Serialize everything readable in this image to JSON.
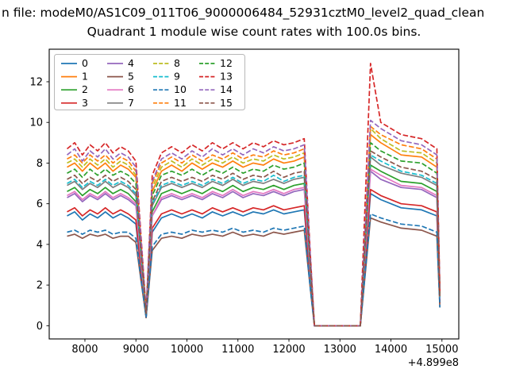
{
  "figure": {
    "suptitle": "n file: modeM0/AS1C09_011T06_9000006484_52931cztM0_level2_quad_clean",
    "title": "Quadrant 1 module wise count rates with 100.0s bins."
  },
  "chart_data": {
    "type": "line",
    "title": "Quadrant 1 module wise count rates with 100.0s bins.",
    "xlabel": "",
    "ylabel": "",
    "x_offset_label": "+4.899e8",
    "grid": false,
    "legend_position": "upper left",
    "legend_ncol": 4,
    "xlim": [
      7300,
      15330
    ],
    "ylim": [
      -0.65,
      13.6
    ],
    "xticks": [
      8000,
      9000,
      10000,
      11000,
      12000,
      13000,
      14000,
      15000
    ],
    "yticks": [
      0,
      2,
      4,
      6,
      8,
      10,
      12
    ],
    "x": [
      7650,
      7800,
      7950,
      8100,
      8250,
      8400,
      8550,
      8700,
      8850,
      9000,
      9100,
      9200,
      9320,
      9500,
      9700,
      9900,
      10100,
      10300,
      10500,
      10700,
      10900,
      11100,
      11300,
      11500,
      11700,
      11900,
      12100,
      12300,
      12420,
      12500,
      13000,
      13400,
      13600,
      13800,
      14200,
      14600,
      14900,
      14960
    ],
    "series": [
      {
        "name": "0",
        "color": "#1f77b4",
        "dashed": false,
        "values": [
          5.4,
          5.6,
          5.2,
          5.5,
          5.3,
          5.6,
          5.3,
          5.5,
          5.3,
          5.0,
          2.7,
          0.4,
          4.6,
          5.3,
          5.5,
          5.3,
          5.5,
          5.3,
          5.6,
          5.4,
          5.6,
          5.4,
          5.6,
          5.5,
          5.7,
          5.5,
          5.6,
          5.7,
          2.2,
          0,
          0,
          0,
          6.5,
          6.2,
          5.8,
          5.7,
          5.4,
          1.1
        ]
      },
      {
        "name": "1",
        "color": "#ff7f0e",
        "dashed": false,
        "values": [
          7.8,
          8.0,
          7.6,
          8.0,
          7.7,
          8.0,
          7.6,
          7.9,
          7.7,
          7.3,
          3.9,
          0.6,
          6.6,
          7.6,
          7.9,
          7.6,
          8.0,
          7.7,
          8.0,
          7.8,
          8.1,
          7.8,
          8.0,
          7.9,
          8.2,
          8.0,
          8.1,
          8.3,
          3.1,
          0,
          0,
          0,
          9.4,
          9.0,
          8.4,
          8.3,
          7.8,
          1.6
        ]
      },
      {
        "name": "2",
        "color": "#2ca02c",
        "dashed": false,
        "values": [
          6.6,
          6.8,
          6.4,
          6.7,
          6.5,
          6.8,
          6.5,
          6.7,
          6.5,
          6.1,
          3.3,
          0.5,
          5.6,
          6.5,
          6.7,
          6.5,
          6.7,
          6.5,
          6.8,
          6.6,
          6.9,
          6.6,
          6.8,
          6.7,
          6.9,
          6.7,
          6.9,
          7.0,
          2.6,
          0,
          0,
          0,
          7.9,
          7.6,
          7.1,
          7.0,
          6.6,
          1.3
        ]
      },
      {
        "name": "3",
        "color": "#d62728",
        "dashed": false,
        "values": [
          5.6,
          5.8,
          5.4,
          5.7,
          5.5,
          5.8,
          5.5,
          5.7,
          5.5,
          5.2,
          2.8,
          0.4,
          4.8,
          5.5,
          5.7,
          5.5,
          5.7,
          5.5,
          5.8,
          5.6,
          5.8,
          5.6,
          5.8,
          5.7,
          5.9,
          5.7,
          5.8,
          5.9,
          2.2,
          0,
          0,
          0,
          6.7,
          6.4,
          6.0,
          5.9,
          5.6,
          1.1
        ]
      },
      {
        "name": "4",
        "color": "#9467bd",
        "dashed": false,
        "values": [
          6.3,
          6.5,
          6.1,
          6.4,
          6.2,
          6.5,
          6.2,
          6.4,
          6.2,
          5.9,
          3.2,
          0.5,
          5.4,
          6.2,
          6.4,
          6.2,
          6.4,
          6.2,
          6.5,
          6.3,
          6.6,
          6.3,
          6.5,
          6.4,
          6.6,
          6.4,
          6.6,
          6.7,
          2.5,
          0,
          0,
          0,
          7.6,
          7.2,
          6.8,
          6.7,
          6.3,
          1.3
        ]
      },
      {
        "name": "5",
        "color": "#8c564b",
        "dashed": false,
        "values": [
          4.4,
          4.5,
          4.3,
          4.5,
          4.4,
          4.5,
          4.3,
          4.4,
          4.4,
          4.1,
          2.2,
          0.4,
          3.7,
          4.3,
          4.4,
          4.3,
          4.5,
          4.4,
          4.5,
          4.4,
          4.6,
          4.4,
          4.5,
          4.4,
          4.6,
          4.5,
          4.6,
          4.7,
          1.8,
          0,
          0,
          0,
          5.3,
          5.1,
          4.8,
          4.7,
          4.4,
          0.9
        ]
      },
      {
        "name": "6",
        "color": "#e377c2",
        "dashed": false,
        "values": [
          6.4,
          6.6,
          6.2,
          6.5,
          6.3,
          6.6,
          6.3,
          6.5,
          6.3,
          6.0,
          3.2,
          0.5,
          5.4,
          6.3,
          6.5,
          6.3,
          6.5,
          6.3,
          6.6,
          6.4,
          6.7,
          6.4,
          6.6,
          6.5,
          6.7,
          6.5,
          6.7,
          6.8,
          2.6,
          0,
          0,
          0,
          7.7,
          7.4,
          6.9,
          6.8,
          6.4,
          1.3
        ]
      },
      {
        "name": "7",
        "color": "#7f7f7f",
        "dashed": false,
        "values": [
          6.9,
          7.1,
          6.7,
          7.0,
          6.8,
          7.1,
          6.8,
          7.0,
          6.8,
          6.4,
          3.5,
          0.6,
          5.9,
          6.8,
          7.0,
          6.8,
          7.0,
          6.8,
          7.1,
          6.9,
          7.2,
          6.9,
          7.1,
          7.0,
          7.2,
          7.0,
          7.2,
          7.3,
          2.8,
          0,
          0,
          0,
          8.3,
          7.9,
          7.5,
          7.3,
          6.9,
          1.4
        ]
      },
      {
        "name": "8",
        "color": "#bcbd22",
        "dashed": true,
        "values": [
          8.0,
          8.2,
          7.8,
          8.2,
          7.9,
          8.2,
          7.8,
          8.1,
          7.9,
          7.4,
          4.0,
          0.6,
          6.8,
          7.8,
          8.1,
          7.8,
          8.2,
          7.9,
          8.2,
          8.0,
          8.3,
          8.0,
          8.2,
          8.1,
          8.4,
          8.2,
          8.3,
          8.5,
          3.2,
          0,
          0,
          0,
          9.7,
          9.2,
          8.6,
          8.5,
          8.0,
          1.6
        ]
      },
      {
        "name": "9",
        "color": "#17becf",
        "dashed": true,
        "values": [
          7.0,
          7.2,
          6.8,
          7.1,
          6.9,
          7.2,
          6.9,
          7.1,
          6.9,
          6.5,
          3.5,
          0.6,
          6.0,
          6.9,
          7.1,
          6.9,
          7.1,
          6.9,
          7.2,
          7.0,
          7.3,
          7.0,
          7.2,
          7.1,
          7.4,
          7.1,
          7.3,
          7.4,
          2.8,
          0,
          0,
          0,
          8.4,
          8.1,
          7.6,
          7.4,
          7.0,
          1.4
        ]
      },
      {
        "name": "10",
        "color": "#1f77b4",
        "dashed": true,
        "values": [
          4.6,
          4.7,
          4.5,
          4.7,
          4.6,
          4.7,
          4.5,
          4.6,
          4.6,
          4.3,
          2.3,
          0.4,
          3.9,
          4.5,
          4.6,
          4.5,
          4.7,
          4.6,
          4.7,
          4.6,
          4.8,
          4.6,
          4.7,
          4.6,
          4.8,
          4.7,
          4.8,
          4.9,
          1.8,
          0,
          0,
          0,
          5.5,
          5.3,
          5.0,
          4.9,
          4.6,
          0.9
        ]
      },
      {
        "name": "11",
        "color": "#ff7f0e",
        "dashed": true,
        "values": [
          8.2,
          8.4,
          8.0,
          8.4,
          8.1,
          8.4,
          8.0,
          8.3,
          8.1,
          7.6,
          4.1,
          0.7,
          7.0,
          8.0,
          8.3,
          8.0,
          8.4,
          8.1,
          8.4,
          8.2,
          8.5,
          8.2,
          8.4,
          8.3,
          8.6,
          8.4,
          8.5,
          8.7,
          3.3,
          0,
          0,
          0,
          9.8,
          9.4,
          8.9,
          8.7,
          8.2,
          1.6
        ]
      },
      {
        "name": "12",
        "color": "#2ca02c",
        "dashed": true,
        "values": [
          7.5,
          7.7,
          7.3,
          7.7,
          7.4,
          7.7,
          7.4,
          7.6,
          7.4,
          7.0,
          3.8,
          0.6,
          6.4,
          7.4,
          7.6,
          7.4,
          7.7,
          7.4,
          7.7,
          7.5,
          7.8,
          7.5,
          7.7,
          7.6,
          7.9,
          7.7,
          7.8,
          8.0,
          3.0,
          0,
          0,
          0,
          9.0,
          8.6,
          8.1,
          8.0,
          7.5,
          1.5
        ]
      },
      {
        "name": "13",
        "color": "#d62728",
        "dashed": true,
        "values": [
          8.7,
          9.0,
          8.4,
          8.9,
          8.6,
          9.0,
          8.5,
          8.8,
          8.6,
          8.1,
          4.4,
          0.7,
          7.4,
          8.5,
          8.8,
          8.5,
          8.9,
          8.6,
          9.0,
          8.7,
          9.0,
          8.7,
          9.0,
          8.8,
          9.1,
          8.9,
          9.0,
          9.2,
          3.5,
          0,
          0,
          0,
          12.9,
          10.0,
          9.4,
          9.2,
          8.7,
          1.7
        ]
      },
      {
        "name": "14",
        "color": "#9467bd",
        "dashed": true,
        "values": [
          8.4,
          8.7,
          8.1,
          8.6,
          8.3,
          8.7,
          8.2,
          8.5,
          8.3,
          7.8,
          4.2,
          0.7,
          7.1,
          8.2,
          8.5,
          8.2,
          8.6,
          8.3,
          8.7,
          8.4,
          8.7,
          8.4,
          8.7,
          8.5,
          8.8,
          8.6,
          8.7,
          8.9,
          3.4,
          0,
          0,
          0,
          10.1,
          9.7,
          9.1,
          8.9,
          8.4,
          1.7
        ]
      },
      {
        "name": "15",
        "color": "#8c564b",
        "dashed": true,
        "values": [
          7.2,
          7.4,
          7.0,
          7.3,
          7.1,
          7.4,
          7.1,
          7.3,
          7.1,
          6.7,
          3.6,
          0.6,
          6.1,
          7.1,
          7.3,
          7.1,
          7.3,
          7.1,
          7.4,
          7.2,
          7.5,
          7.2,
          7.4,
          7.3,
          7.6,
          7.3,
          7.5,
          7.6,
          2.9,
          0,
          0,
          0,
          8.6,
          8.3,
          7.8,
          7.6,
          7.2,
          1.4
        ]
      }
    ]
  }
}
